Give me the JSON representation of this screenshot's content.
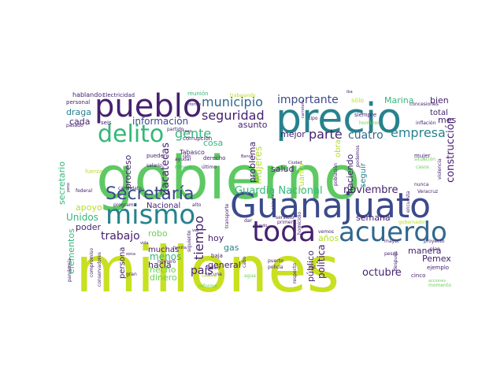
{
  "palette": {
    "purple": "#46216f",
    "indigo": "#3b4a8c",
    "blue": "#31688e",
    "teal": "#26828e",
    "green": "#35b779",
    "lime": "#6ece58",
    "yellow": "#b5de2b",
    "bright": "#c8e020"
  },
  "words": {
    "gobierno": "gobierno",
    "millones": "millones",
    "guanajuato": "Guanajuato",
    "precio": "precio",
    "pueblo": "pueblo",
    "mismo": "mismo",
    "toda": "toda",
    "acuerdo": "acuerdo",
    "delito": "delito",
    "secretaria_big": "Secretaría",
    "municipio": "municipio",
    "seguridad": "seguridad",
    "importante": "importante",
    "gente": "gente",
    "parte": "parte",
    "cuatro": "cuatro",
    "empresa": "empresa",
    "construccion": "construcción",
    "guardia": "Guardia Nacional",
    "noviembre": "noviembre",
    "trabajo": "trabajo",
    "tiempo": "tiempo",
    "pais": "país",
    "menos": "menos",
    "octubre": "octubre",
    "politica": "política",
    "publico": "público",
    "manera": "manera",
    "pemex": "Pemex",
    "informacion": "información",
    "zacatecas": "Zacatecas",
    "proceso": "proceso",
    "mujeres": "mujeres",
    "problema": "problema",
    "unidos": "Unidos",
    "elementos": "elementos",
    "marina": "Marina",
    "bien": "bien",
    "mes": "mes",
    "total": "total",
    "dinero": "dinero",
    "hecho": "hecho",
    "hacia": "hacia",
    "muchas": "muchas",
    "robo": "robo",
    "poder": "poder",
    "apoyo": "apoyo",
    "hoy": "hoy",
    "gas": "gas",
    "general": "general",
    "salud": "salud",
    "asunto": "asunto",
    "cosa": "cosa",
    "mejor": "mejor",
    "draga": "draga",
    "cada": "cada",
    "obra": "obra",
    "haciendo": "haciendo",
    "seguir": "seguir",
    "semana": "semana",
    "anos": "años",
    "cuanto": "cuanto",
    "persona": "persona",
    "secretario": "secretario",
    "nacional": "Nacional",
    "tabasco": "Tabasco",
    "hablando": "hablando",
    "electricidad": "Electricidad",
    "personal": "personal",
    "reunion": "reunión",
    "trabajando": "trabajando",
    "solo": "sólo",
    "siempre": "siempre",
    "hombres": "hombres",
    "concesiones": "concesiones",
    "inflacion": "inflación",
    "situacion": "situación",
    "corrupcion": "corrupción",
    "partido": "partido",
    "derecho": "derecho",
    "ultimo": "último",
    "mujer": "mujer",
    "poblacion": "población",
    "casos": "casos",
    "pueden": "pueden",
    "salario": "salario",
    "ayudar": "ayudar",
    "minera": "minera",
    "candidato": "candidato",
    "programa": "programa",
    "alto": "alto",
    "federal": "federal",
    "fuerza": "fuerza",
    "veracruz": "Veracruz",
    "encuesta": "encuesta",
    "primera": "primera",
    "vemos": "vemos",
    "mayor": "mayor",
    "proyecto": "proyecto",
    "plan": "plan",
    "cinco": "cinco",
    "ejemplo": "ejemplo",
    "acciones": "acciones",
    "momento": "momento",
    "despues": "después",
    "homicidio": "homicidio",
    "puerto": "puerto",
    "policia": "policía",
    "respecto": "respecto",
    "luz": "luz",
    "baja": "baja",
    "biden": "Biden",
    "vacuna": "vacuna",
    "reforma": "reforma",
    "todavia": "todavía",
    "agua": "agua",
    "numero": "número",
    "zona": "zona",
    "gran": "gran",
    "compromiso": "compromiso",
    "pandemia": "pandemia",
    "conservadores": "conservadores",
    "familia": "familia",
    "siguiente": "siguiente",
    "servicio": "servicio",
    "mundo": "mundo",
    "vez": "vez",
    "pasado": "pasado",
    "seis": "seis",
    "tipo": "tipo",
    "ciudad": "Ciudad",
    "informe": "informe",
    "banco": "Banco",
    "gobernador": "gobernador",
    "pesos": "pesos",
    "nunca": "nunca",
    "vida": "vida",
    "peso": "peso",
    "violencia": "violencia",
    "iba": "iba",
    "podemos": "podemos",
    "caso": "caso",
    "sido": "sido",
    "cabo": "cabo",
    "dar": "dar",
    "sistema": "sistema",
    "carretera": "carretera",
    "transporte": "transporte"
  }
}
